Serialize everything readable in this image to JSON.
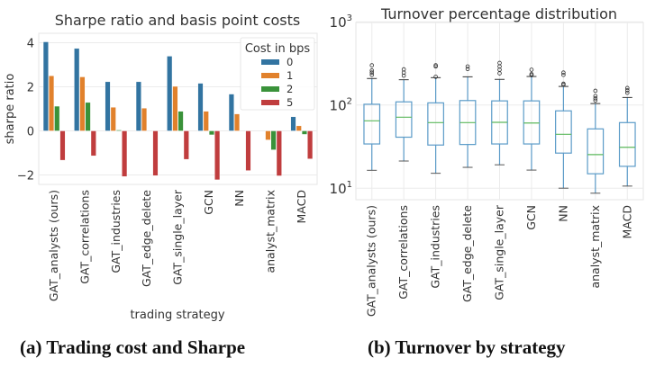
{
  "captions": {
    "a": "(a) Trading cost and Sharpe",
    "b": "(b) Turnover by strategy"
  },
  "chart_data": [
    {
      "type": "bar",
      "title": "Sharpe ratio and basis point costs",
      "xlabel": "trading strategy",
      "ylabel": "sharpe ratio",
      "ylim": [
        -2.5,
        4.4
      ],
      "yticks": [
        -2,
        0,
        2,
        4
      ],
      "ytick_labels": [
        "−2",
        "0",
        "2",
        "4"
      ],
      "grid": true,
      "categories": [
        "GAT_analysts (ours)",
        "GAT_correlations",
        "GAT_industries",
        "GAT_edge_delete",
        "GAT_single_layer",
        "GCN",
        "NN",
        "analyst_matrix",
        "MACD"
      ],
      "legend": {
        "title": "Cost in bps",
        "position": "top-right"
      },
      "series": [
        {
          "name": "0",
          "color": "#3274a1",
          "values": [
            4.04,
            3.74,
            2.23,
            2.23,
            3.39,
            2.16,
            1.67,
            0.0,
            0.64
          ]
        },
        {
          "name": "1",
          "color": "#e1812c",
          "values": [
            2.5,
            2.45,
            1.07,
            1.03,
            2.02,
            0.89,
            0.77,
            -0.41,
            0.23
          ]
        },
        {
          "name": "2",
          "color": "#3a923a",
          "values": [
            1.12,
            1.29,
            0.04,
            0.0,
            0.89,
            -0.18,
            0.0,
            -0.86,
            -0.16
          ]
        },
        {
          "name": "5",
          "color": "#c03d3e",
          "values": [
            -1.33,
            -1.13,
            -2.07,
            -2.03,
            -1.29,
            -2.22,
            -1.8,
            -2.04,
            -1.27
          ]
        }
      ]
    },
    {
      "type": "boxplot",
      "title": "Turnover percentage distribution",
      "xlabel": "",
      "ylabel": "",
      "yscale": "log",
      "ylim": [
        7,
        1000
      ],
      "yticks": [
        10,
        100,
        1000
      ],
      "ytick_labels": [
        {
          "base": "10",
          "exp": "1"
        },
        {
          "base": "10",
          "exp": "2"
        },
        {
          "base": "10",
          "exp": "3"
        }
      ],
      "grid": true,
      "box_color": "#5b9bc8",
      "median_color": "#5cb85c",
      "categories": [
        "GAT_analysts (ours)",
        "GAT_correlations",
        "GAT_industries",
        "GAT_edge_delete",
        "GAT_single_layer",
        "GCN",
        "NN",
        "analyst_matrix",
        "MACD"
      ],
      "boxes": [
        {
          "whislo": 16.4,
          "q1": 34,
          "med": 64.5,
          "q3": 102,
          "whishi": 208,
          "fliers": [
            230,
            245,
            260,
            300
          ]
        },
        {
          "whislo": 21.2,
          "q1": 41,
          "med": 71.3,
          "q3": 109,
          "whishi": 201,
          "fliers": [
            225,
            245,
            268
          ]
        },
        {
          "whislo": 15.1,
          "q1": 33,
          "med": 61.4,
          "q3": 106,
          "whishi": 213,
          "fliers": [
            218,
            290,
            300
          ]
        },
        {
          "whislo": 17.8,
          "q1": 33.5,
          "med": 61.4,
          "q3": 113,
          "whishi": 218,
          "fliers": [
            270,
            290
          ]
        },
        {
          "whislo": 19.1,
          "q1": 34,
          "med": 61.8,
          "q3": 112,
          "whishi": 203,
          "fliers": [
            240,
            265,
            290,
            320
          ]
        },
        {
          "whislo": 16.5,
          "q1": 34,
          "med": 60.7,
          "q3": 112,
          "whishi": 220,
          "fliers": [
            228,
            235,
            265
          ]
        },
        {
          "whislo": 10,
          "q1": 26.4,
          "med": 44.4,
          "q3": 85,
          "whishi": 167,
          "fliers": [
            175,
            180,
            230,
            245
          ]
        },
        {
          "whislo": 8.7,
          "q1": 14.9,
          "med": 25.3,
          "q3": 51.6,
          "whishi": 104,
          "fliers": [
            113,
            120,
            128,
            148
          ]
        },
        {
          "whislo": 10.6,
          "q1": 18.3,
          "med": 31,
          "q3": 61.4,
          "whishi": 123,
          "fliers": [
            140,
            150,
            160
          ]
        }
      ]
    }
  ]
}
